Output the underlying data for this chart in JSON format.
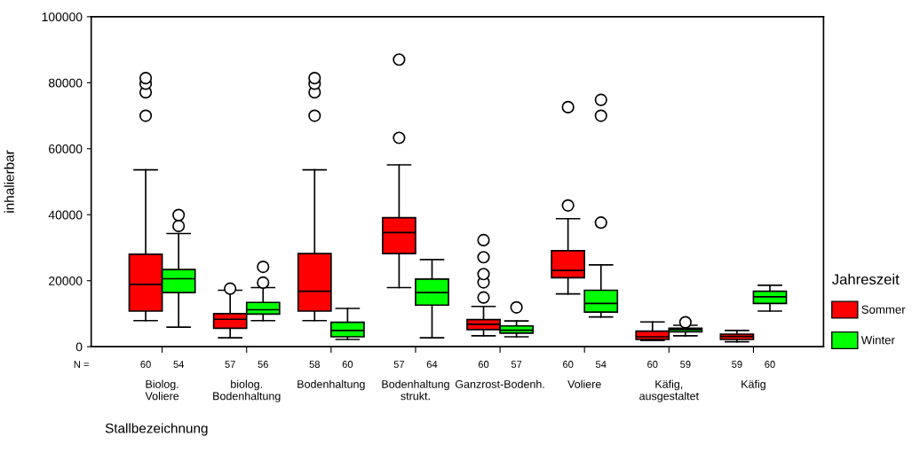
{
  "chart_data": {
    "type": "box",
    "ylabel": "inhalierbar",
    "xlabel": "Stallbezeichnung",
    "legend_title": "Jahreszeit",
    "legend": "right",
    "categories": [
      "Biolog. Voliere",
      "biolog. Bodenhaltung",
      "Bodenhaltung",
      "Bodenhaltung strukt.",
      "Ganzrost-Bodenh.",
      "Voliere",
      "Käfig, ausgestaltet",
      "Käfig"
    ],
    "ylim": [
      0,
      100000
    ],
    "yticks": [
      0,
      20000,
      40000,
      60000,
      80000,
      100000
    ],
    "grid": false,
    "annotations": [
      "N ="
    ],
    "series": [
      {
        "name": "Sommer",
        "color": "#ff0000",
        "value_labels": [
          "60",
          "57",
          "58",
          "57",
          "60",
          "60",
          "60",
          "59"
        ],
        "boxes": [
          {
            "low": 7900,
            "q1": 10800,
            "median": 18900,
            "q3": 28000,
            "high": 53600,
            "outliers": [
              70000,
              77100,
              79700,
              81400
            ]
          },
          {
            "low": 2700,
            "q1": 5600,
            "median": 8300,
            "q3": 10000,
            "high": 17100,
            "outliers": [
              17600
            ]
          },
          {
            "low": 7900,
            "q1": 10800,
            "median": 16800,
            "q3": 28200,
            "high": 53600,
            "outliers": [
              70000,
              77100,
              79700,
              81400
            ]
          },
          {
            "low": 17900,
            "q1": 28200,
            "median": 34600,
            "q3": 39100,
            "high": 55100,
            "outliers": [
              63300,
              87000
            ]
          },
          {
            "low": 3300,
            "q1": 5200,
            "median": 6800,
            "q3": 8200,
            "high": 12200,
            "outliers": [
              14900,
              19500,
              22000,
              27100,
              32300
            ]
          },
          {
            "low": 16000,
            "q1": 20900,
            "median": 23100,
            "q3": 29100,
            "high": 38800,
            "outliers": [
              42800,
              72600
            ]
          },
          {
            "low": 1900,
            "q1": 2200,
            "median": 3000,
            "q3": 4700,
            "high": 7500
          },
          {
            "low": 1500,
            "q1": 2200,
            "median": 3100,
            "q3": 3800,
            "high": 4900
          }
        ]
      },
      {
        "name": "Winter",
        "color": "#00ff00",
        "value_labels": [
          "54",
          "56",
          "60",
          "64",
          "57",
          "54",
          "59",
          "60"
        ],
        "boxes": [
          {
            "low": 5900,
            "q1": 16400,
            "median": 20600,
            "q3": 23400,
            "high": 34300,
            "outliers": [
              36600,
              39900
            ]
          },
          {
            "low": 7900,
            "q1": 9900,
            "median": 11200,
            "q3": 13400,
            "high": 17900,
            "outliers": [
              19400,
              24200
            ]
          },
          {
            "low": 2200,
            "q1": 3000,
            "median": 4900,
            "q3": 7400,
            "high": 11600
          },
          {
            "low": 2700,
            "q1": 12600,
            "median": 16400,
            "q3": 20500,
            "high": 26400
          },
          {
            "low": 3000,
            "q1": 4100,
            "median": 5000,
            "q3": 6300,
            "high": 7800,
            "outliers": [
              11900
            ]
          },
          {
            "low": 9000,
            "q1": 10500,
            "median": 13100,
            "q3": 17100,
            "high": 24800,
            "outliers": [
              37600,
              70000,
              74800
            ]
          },
          {
            "low": 3300,
            "q1": 4500,
            "median": 5200,
            "q3": 5600,
            "high": 6500,
            "outliers": [
              7400
            ]
          },
          {
            "low": 10800,
            "q1": 13100,
            "median": 15100,
            "q3": 16800,
            "high": 18600
          }
        ]
      }
    ]
  }
}
